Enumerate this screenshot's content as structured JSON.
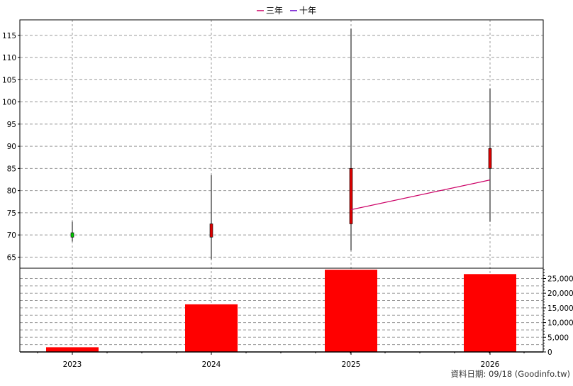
{
  "chart_data": {
    "type": "candlestick",
    "legend": [
      {
        "label": "三年",
        "color": "#cc0066"
      },
      {
        "label": "十年",
        "color": "#6600cc"
      }
    ],
    "candles": [
      {
        "x": "2023",
        "open": 70.5,
        "close": 69.5,
        "high": 73.0,
        "low": 68.5,
        "color": "#00cc00"
      },
      {
        "x": "2024",
        "open": 69.5,
        "close": 72.5,
        "high": 83.5,
        "low": 64.5,
        "color": "#dd0000"
      },
      {
        "x": "2025",
        "open": 72.5,
        "close": 85.0,
        "high": 116.5,
        "low": 66.5,
        "color": "#dd0000"
      },
      {
        "x": "2026",
        "open": 85.0,
        "close": 89.5,
        "high": 103.0,
        "low": 73.0,
        "color": "#dd0000"
      }
    ],
    "line_3yr": [
      {
        "x": "2025",
        "y": 75.7
      },
      {
        "x": "2026",
        "y": 82.4
      }
    ],
    "volume": [
      {
        "x": "2023",
        "value": 1600
      },
      {
        "x": "2024",
        "value": 16200
      },
      {
        "x": "2025",
        "value": 28000
      },
      {
        "x": "2026",
        "value": 26500
      }
    ],
    "price_ticks": [
      65,
      70,
      75,
      80,
      85,
      90,
      95,
      100,
      105,
      110,
      115
    ],
    "price_ylim": [
      62.5,
      118.5
    ],
    "volume_ticks": [
      "0",
      "5,000",
      "10,000",
      "15,000",
      "20,000",
      "25,000"
    ],
    "volume_tick_values": [
      0,
      5000,
      10000,
      15000,
      20000,
      25000
    ],
    "volume_ylim": [
      0,
      28500
    ],
    "x_labels": [
      "2023",
      "2024",
      "2025",
      "2026"
    ],
    "grid": true,
    "source": "資料日期: 09/18  (Goodinfo.tw)"
  }
}
